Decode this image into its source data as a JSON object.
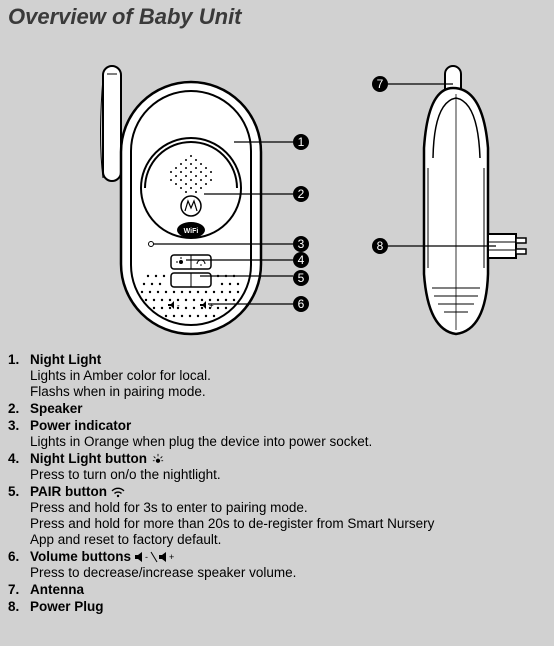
{
  "title": "Overview of Baby Unit",
  "callouts": [
    "1",
    "2",
    "3",
    "4",
    "5",
    "6",
    "7",
    "8"
  ],
  "items": [
    {
      "num": "1.",
      "label": "Night Light",
      "desc": [
        "Lights in Amber color for local.",
        "Flashs when in pairing mode."
      ]
    },
    {
      "num": "2.",
      "label": "Speaker",
      "desc": []
    },
    {
      "num": "3.",
      "label": "Power indicator",
      "desc": [
        "Lights in Orange when plug the device into power socket."
      ]
    },
    {
      "num": "4.",
      "label": "Night Light button ",
      "icon": "nightlight",
      "desc": [
        "Press to turn on/o the nightlight."
      ]
    },
    {
      "num": "5.",
      "label": "PAIR button ",
      "icon": "wifi",
      "desc": [
        "Press and hold for 3s to enter to pairing mode.",
        "Press and hold for more than 20s to de-register from Smart Nursery",
        "App and reset to factory default."
      ]
    },
    {
      "num": "6.",
      "label": "Volume buttons ",
      "icon": "volume",
      "desc": [
        "Press to decrease/increase speaker volume."
      ]
    },
    {
      "num": "7.",
      "label": "Antenna",
      "desc": []
    },
    {
      "num": "8.",
      "label": "Power Plug",
      "desc": []
    }
  ]
}
